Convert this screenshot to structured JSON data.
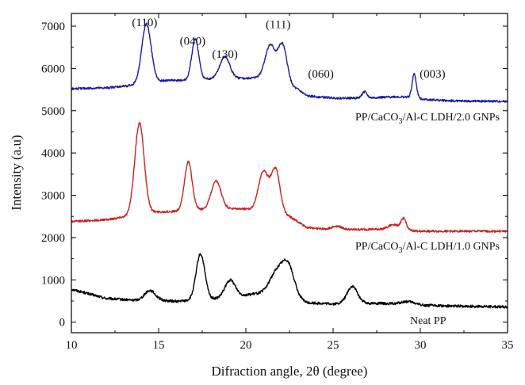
{
  "chart_data": {
    "type": "line",
    "title": "",
    "xlabel": "Difraction angle, 2θ (degree)",
    "ylabel": "Intensity (a.u)",
    "xlim": [
      10,
      35
    ],
    "ylim": [
      -250,
      7300
    ],
    "xticks": [
      10,
      15,
      20,
      25,
      30,
      35
    ],
    "yticks": [
      0,
      1000,
      2000,
      3000,
      4000,
      5000,
      6000,
      7000
    ],
    "xtick_labels": [
      "10",
      "15",
      "20",
      "25",
      "30",
      "35"
    ],
    "ytick_labels": [
      "0",
      "1000",
      "2000",
      "3000",
      "4000",
      "5000",
      "6000",
      "7000"
    ],
    "grid": false,
    "series": [
      {
        "name": "Neat PP",
        "label_parts": [
          "Neat PP"
        ],
        "color": "#000000",
        "baseline": [
          [
            10,
            780
          ],
          [
            12,
            560
          ],
          [
            13.5,
            520
          ],
          [
            15,
            520
          ],
          [
            16,
            490
          ],
          [
            17,
            520
          ],
          [
            18.5,
            560
          ],
          [
            20,
            640
          ],
          [
            21,
            700
          ],
          [
            22,
            720
          ],
          [
            23.5,
            460
          ],
          [
            25,
            430
          ],
          [
            26.8,
            450
          ],
          [
            28,
            440
          ],
          [
            30,
            400
          ],
          [
            32,
            380
          ],
          [
            35,
            360
          ]
        ],
        "peaks": [
          [
            14.5,
            230,
            0.3
          ],
          [
            17.4,
            1080,
            0.25
          ],
          [
            19.1,
            400,
            0.3
          ],
          [
            21.7,
            420,
            0.35
          ],
          [
            22.4,
            740,
            0.35
          ],
          [
            26.1,
            400,
            0.3
          ],
          [
            29.3,
            70,
            0.4
          ]
        ],
        "noise": 30
      },
      {
        "name": "PP/CaCO3/Al-C LDH/1.0 GNPs",
        "label_parts": [
          "PP/CaCO",
          "3",
          "/Al-C LDH/1.0 GNPs"
        ],
        "color": "#cc2222",
        "baseline": [
          [
            10,
            2380
          ],
          [
            12,
            2420
          ],
          [
            14.5,
            2600
          ],
          [
            16,
            2620
          ],
          [
            18,
            2680
          ],
          [
            20,
            2680
          ],
          [
            22.5,
            2500
          ],
          [
            23.5,
            2240
          ],
          [
            25,
            2180
          ],
          [
            28,
            2200
          ],
          [
            30,
            2150
          ],
          [
            35,
            2150
          ]
        ],
        "peaks": [
          [
            13.9,
            2150,
            0.27
          ],
          [
            16.7,
            1150,
            0.22
          ],
          [
            18.3,
            650,
            0.28
          ],
          [
            21,
            950,
            0.28
          ],
          [
            21.7,
            1050,
            0.26
          ],
          [
            25.2,
            90,
            0.3
          ],
          [
            28.5,
            120,
            0.3
          ],
          [
            29.05,
            260,
            0.15
          ]
        ],
        "noise": 25
      },
      {
        "name": "PP/CaCO3/Al-C LDH/2.0 GNPs",
        "label_parts": [
          "PP/CaCO",
          "3",
          "/Al-C LDH/2.0 GNPs"
        ],
        "color": "#1a1aaa",
        "baseline": [
          [
            10,
            5520
          ],
          [
            12,
            5540
          ],
          [
            13.5,
            5600
          ],
          [
            15.5,
            5720
          ],
          [
            17,
            5720
          ],
          [
            18.5,
            5780
          ],
          [
            20,
            5760
          ],
          [
            21,
            5800
          ],
          [
            23,
            5500
          ],
          [
            23.5,
            5350
          ],
          [
            25,
            5300
          ],
          [
            27,
            5300
          ],
          [
            28.5,
            5330
          ],
          [
            29.4,
            5320
          ],
          [
            30.5,
            5260
          ],
          [
            32,
            5230
          ],
          [
            35,
            5220
          ]
        ],
        "peaks": [
          [
            14.3,
            1400,
            0.27
          ],
          [
            17.1,
            980,
            0.2
          ],
          [
            18.8,
            500,
            0.28
          ],
          [
            21.4,
            800,
            0.28
          ],
          [
            22.1,
            920,
            0.26
          ],
          [
            26.8,
            150,
            0.14
          ],
          [
            29.65,
            560,
            0.12
          ]
        ],
        "noise": 25
      }
    ],
    "annotations": [
      {
        "text": "(110)",
        "x": 14.2,
        "y": 7000
      },
      {
        "text": "(040)",
        "x": 16.95,
        "y": 6560
      },
      {
        "text": "(130)",
        "x": 18.8,
        "y": 6250
      },
      {
        "text": "(111)",
        "x": 21.85,
        "y": 6950
      },
      {
        "text": "(060)",
        "x": 24.3,
        "y": 5780
      },
      {
        "text": "(003)",
        "x": 30.7,
        "y": 5780
      }
    ]
  }
}
